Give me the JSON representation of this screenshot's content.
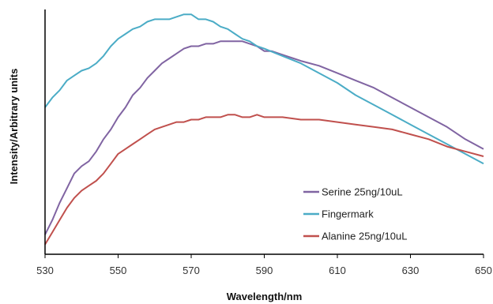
{
  "chart_data": {
    "type": "line",
    "title": "",
    "xlabel": "Wavelength/nm",
    "ylabel": "Intensity/Arbitrary units",
    "xlim": [
      530,
      650
    ],
    "ylim": [
      0,
      100
    ],
    "x_ticks": [
      530,
      550,
      570,
      590,
      610,
      630,
      650
    ],
    "y_ticks_shown": false,
    "grid": false,
    "legend_position": "bottom-right",
    "series": [
      {
        "name": "Serine 25ng/10uL",
        "color": "#8064A2",
        "x": [
          530,
          532,
          534,
          536,
          538,
          540,
          542,
          544,
          546,
          548,
          550,
          552,
          554,
          556,
          558,
          560,
          562,
          564,
          566,
          568,
          570,
          572,
          574,
          576,
          578,
          580,
          582,
          584,
          586,
          588,
          590,
          592,
          594,
          596,
          598,
          600,
          605,
          610,
          615,
          620,
          625,
          630,
          635,
          640,
          645,
          650
        ],
        "y": [
          8,
          14,
          21,
          27,
          33,
          36,
          38,
          42,
          47,
          51,
          56,
          60,
          65,
          68,
          72,
          75,
          78,
          80,
          82,
          84,
          85,
          85,
          86,
          86,
          87,
          87,
          87,
          87,
          86,
          85,
          83,
          83,
          82,
          81,
          80,
          79,
          77,
          74,
          71,
          68,
          64,
          60,
          56,
          52,
          47,
          43
        ]
      },
      {
        "name": "Fingermark",
        "color": "#4BACC6",
        "x": [
          530,
          532,
          534,
          536,
          538,
          540,
          542,
          544,
          546,
          548,
          550,
          552,
          554,
          556,
          558,
          560,
          562,
          564,
          566,
          568,
          570,
          572,
          574,
          576,
          578,
          580,
          582,
          584,
          586,
          588,
          590,
          595,
          600,
          605,
          610,
          615,
          620,
          625,
          630,
          635,
          640,
          645,
          650
        ],
        "y": [
          60,
          64,
          67,
          71,
          73,
          75,
          76,
          78,
          81,
          85,
          88,
          90,
          92,
          93,
          95,
          96,
          96,
          96,
          97,
          98,
          98,
          96,
          96,
          95,
          93,
          92,
          90,
          88,
          87,
          85,
          84,
          81,
          78,
          74,
          70,
          65,
          61,
          57,
          53,
          49,
          45,
          41,
          37
        ]
      },
      {
        "name": "Alanine 25ng/10uL",
        "color": "#C0504D",
        "x": [
          530,
          532,
          534,
          536,
          538,
          540,
          542,
          544,
          546,
          548,
          550,
          552,
          554,
          556,
          558,
          560,
          562,
          564,
          566,
          568,
          570,
          572,
          574,
          576,
          578,
          580,
          582,
          584,
          586,
          588,
          590,
          595,
          600,
          605,
          610,
          615,
          620,
          625,
          630,
          635,
          640,
          645,
          650
        ],
        "y": [
          4,
          9,
          14,
          19,
          23,
          26,
          28,
          30,
          33,
          37,
          41,
          43,
          45,
          47,
          49,
          51,
          52,
          53,
          54,
          54,
          55,
          55,
          56,
          56,
          56,
          57,
          57,
          56,
          56,
          57,
          56,
          56,
          55,
          55,
          54,
          53,
          52,
          51,
          49,
          47,
          44,
          42,
          40
        ]
      }
    ]
  }
}
